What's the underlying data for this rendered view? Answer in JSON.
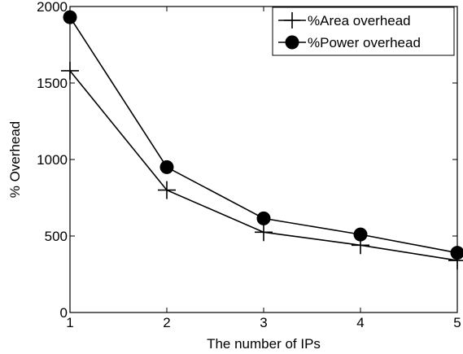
{
  "chart_data": {
    "type": "line",
    "title": "",
    "xlabel": "The number of IPs",
    "ylabel": "% Overhead",
    "x": [
      1,
      2,
      3,
      4,
      5
    ],
    "xlim": [
      1,
      5
    ],
    "ylim": [
      0,
      2000
    ],
    "xticks": [
      1,
      2,
      3,
      4,
      5
    ],
    "yticks": [
      0,
      500,
      1000,
      1500,
      2000
    ],
    "grid": false,
    "legend_position": "top-right",
    "series": [
      {
        "name": "%Area overhead",
        "marker": "plus",
        "color": "#000000",
        "values": [
          1580,
          800,
          525,
          440,
          340
        ]
      },
      {
        "name": "%Power overhead",
        "marker": "filled-circle",
        "color": "#000000",
        "values": [
          1930,
          950,
          615,
          510,
          390
        ]
      }
    ]
  }
}
